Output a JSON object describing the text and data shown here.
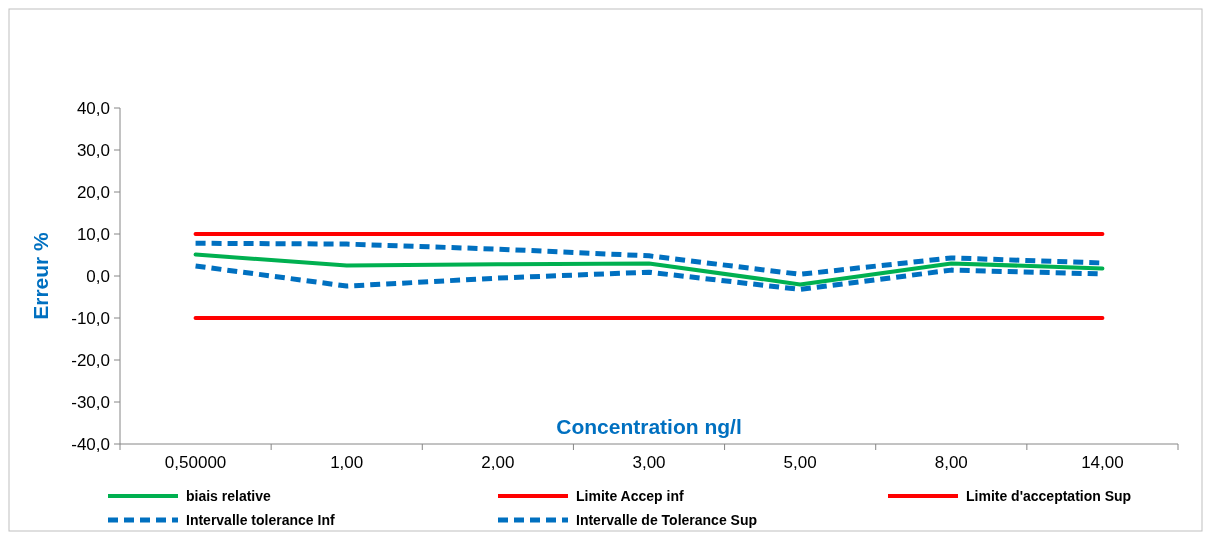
{
  "chart_data": {
    "type": "line",
    "xlabel": "Concentration ng/l",
    "ylabel": "Erreur %",
    "categories": [
      "0,50000",
      "1,00",
      "2,00",
      "3,00",
      "5,00",
      "8,00",
      "14,00"
    ],
    "ylim": [
      -40,
      40
    ],
    "yticks": [
      {
        "value": -40,
        "label": "-40,0"
      },
      {
        "value": -30,
        "label": "-30,0"
      },
      {
        "value": -20,
        "label": "-20,0"
      },
      {
        "value": -10,
        "label": "-10,0"
      },
      {
        "value": 0,
        "label": "0,0"
      },
      {
        "value": 10,
        "label": "10,0"
      },
      {
        "value": 20,
        "label": "20,0"
      },
      {
        "value": 30,
        "label": "30,0"
      },
      {
        "value": 40,
        "label": "40,0"
      }
    ],
    "grid": false,
    "legend": "bottom",
    "marker": "none",
    "series": [
      {
        "name": "biais relative",
        "color": "#00b050",
        "line_style": "solid",
        "values": [
          5.1,
          2.5,
          2.8,
          3.0,
          -2.0,
          3.0,
          1.8
        ]
      },
      {
        "name": "Limite Accep inf",
        "color": "#ff0000",
        "line_style": "solid",
        "values": [
          -10,
          -10,
          -10,
          -10,
          -10,
          -10,
          -10
        ]
      },
      {
        "name": "Limite d'acceptation Sup",
        "color": "#ff0000",
        "line_style": "solid",
        "values": [
          10,
          10,
          10,
          10,
          10,
          10,
          10
        ]
      },
      {
        "name": "Intervalle tolerance Inf",
        "color": "#0070c0",
        "line_style": "dashed",
        "values": [
          2.4,
          -2.4,
          -0.5,
          0.9,
          -3.2,
          1.4,
          0.5
        ]
      },
      {
        "name": "Intervalle de Tolerance Sup",
        "color": "#0070c0",
        "line_style": "dashed",
        "values": [
          7.8,
          7.6,
          6.4,
          4.8,
          0.4,
          4.3,
          3.1
        ]
      }
    ]
  }
}
